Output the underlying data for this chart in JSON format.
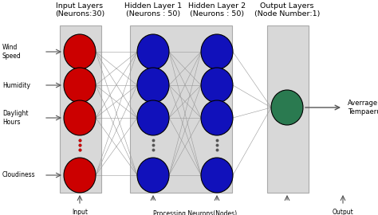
{
  "background_color": "#ffffff",
  "layer_box_color": "#d8d8d8",
  "input_neuron_color": "#cc0000",
  "hidden_neuron_color": "#1111bb",
  "output_neuron_color": "#2a7a50",
  "connection_color": "#999999",
  "text_color": "#000000",
  "input_labels": [
    "Wind\nSpeed",
    "Humidity",
    "Daylight\nHours",
    "Cloudiness"
  ],
  "layer_titles": [
    "Input Layers\n(Neurons:30)",
    "Hidden Layer 1\n(Neurons : 50)",
    "Hidden Layer 2\n(Neurons : 50)",
    "Output Layers\n(Node Number:1)"
  ],
  "output_label": "Averrage\nTempaerure",
  "fig_width": 4.74,
  "fig_height": 2.7,
  "dpi": 100
}
